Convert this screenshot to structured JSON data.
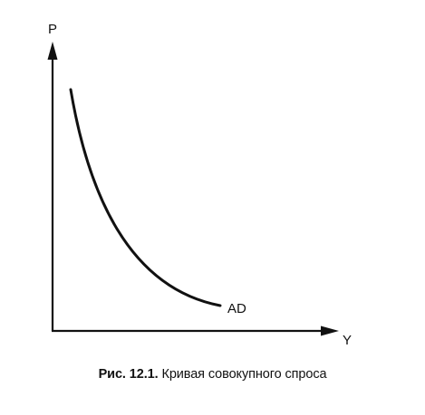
{
  "figure": {
    "y_axis_label": "P",
    "x_axis_label": "Y",
    "curve_label": "AD",
    "caption_number": "Рис. 12.1.",
    "caption_text": "Кривая совокупного спроса"
  },
  "colors": {
    "ink": "#111111",
    "background": "#ffffff"
  }
}
